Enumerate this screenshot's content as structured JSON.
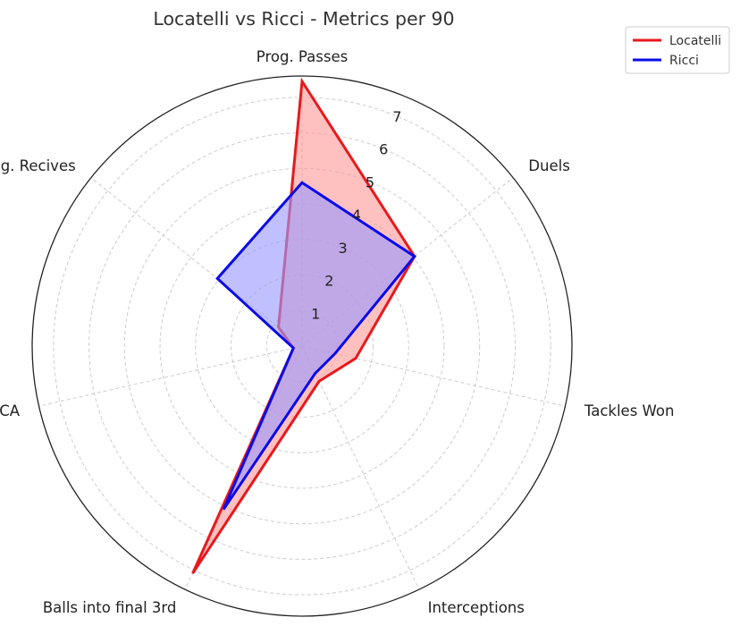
{
  "chart_data": {
    "type": "radar",
    "title": "Locatelli vs Ricci - Metrics per 90",
    "categories": [
      "Prog. Passes",
      "Duels",
      "Tackles Won",
      "Interceptions",
      "Balls into final 3rd",
      "GCA",
      "Prog. Recives"
    ],
    "rlim": [
      0,
      7.6
    ],
    "rticks": [
      1,
      2,
      3,
      4,
      5,
      6,
      7
    ],
    "grid": true,
    "legend_position": "top-right",
    "series": [
      {
        "name": "Locatelli",
        "color": "#e8191c",
        "fill": "#ff9999",
        "values": [
          7.45,
          4.05,
          1.55,
          1.1,
          7.1,
          0.25,
          0.85
        ]
      },
      {
        "name": "Ricci",
        "color": "#0b0be8",
        "fill": "#9999ff",
        "values": [
          4.6,
          4.05,
          0.95,
          0.85,
          5.1,
          0.25,
          3.05
        ]
      }
    ]
  }
}
